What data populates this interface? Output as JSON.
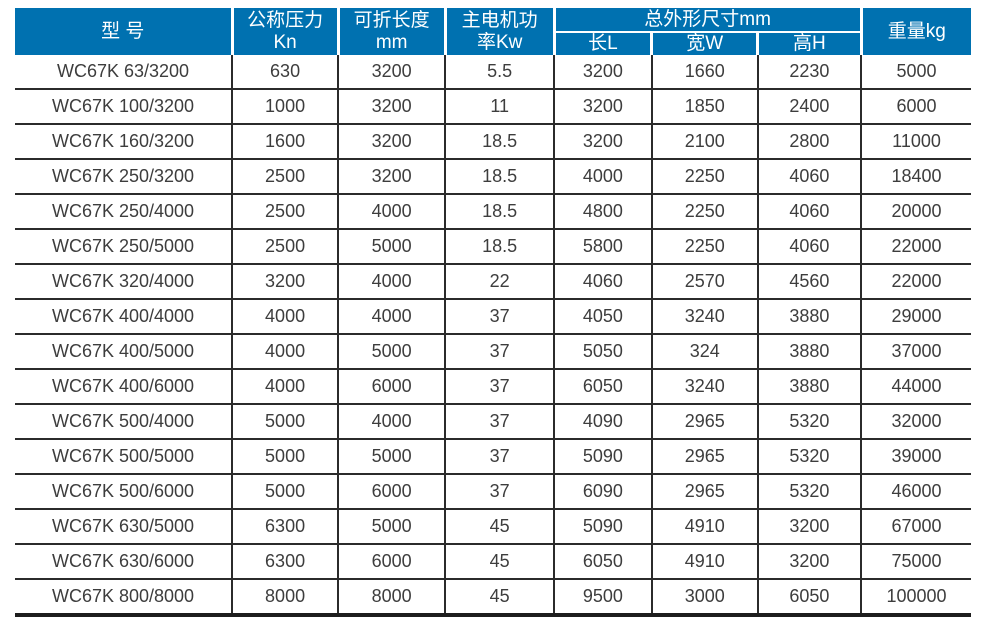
{
  "colors": {
    "header_bg": "#0071b0",
    "header_text": "#ffffff",
    "body_text": "#3d3d3d",
    "grid_line": "#2b2b2b",
    "bottom_line": "#1d1d1d",
    "page_bg": "#ffffff"
  },
  "table": {
    "header": {
      "model": "型 号",
      "pressure": [
        "公称压力",
        "Kn"
      ],
      "length": [
        "可折长度",
        "mm"
      ],
      "motor": [
        "主电机功",
        "率Kw"
      ],
      "dims": "总外形尺寸mm",
      "dims_sub": [
        "长L",
        "宽W",
        "高H"
      ],
      "weight": "重量kg"
    },
    "rows": [
      [
        "WC67K 63/3200",
        "630",
        "3200",
        "5.5",
        "3200",
        "1660",
        "2230",
        "5000"
      ],
      [
        "WC67K 100/3200",
        "1000",
        "3200",
        "11",
        "3200",
        "1850",
        "2400",
        "6000"
      ],
      [
        "WC67K 160/3200",
        "1600",
        "3200",
        "18.5",
        "3200",
        "2100",
        "2800",
        "11000"
      ],
      [
        "WC67K 250/3200",
        "2500",
        "3200",
        "18.5",
        "4000",
        "2250",
        "4060",
        "18400"
      ],
      [
        "WC67K 250/4000",
        "2500",
        "4000",
        "18.5",
        "4800",
        "2250",
        "4060",
        "20000"
      ],
      [
        "WC67K 250/5000",
        "2500",
        "5000",
        "18.5",
        "5800",
        "2250",
        "4060",
        "22000"
      ],
      [
        "WC67K 320/4000",
        "3200",
        "4000",
        "22",
        "4060",
        "2570",
        "4560",
        "22000"
      ],
      [
        "WC67K 400/4000",
        "4000",
        "4000",
        "37",
        "4050",
        "3240",
        "3880",
        "29000"
      ],
      [
        "WC67K 400/5000",
        "4000",
        "5000",
        "37",
        "5050",
        "324",
        "3880",
        "37000"
      ],
      [
        "WC67K 400/6000",
        "4000",
        "6000",
        "37",
        "6050",
        "3240",
        "3880",
        "44000"
      ],
      [
        "WC67K 500/4000",
        "5000",
        "4000",
        "37",
        "4090",
        "2965",
        "5320",
        "32000"
      ],
      [
        "WC67K 500/5000",
        "5000",
        "5000",
        "37",
        "5090",
        "2965",
        "5320",
        "39000"
      ],
      [
        "WC67K 500/6000",
        "5000",
        "6000",
        "37",
        "6090",
        "2965",
        "5320",
        "46000"
      ],
      [
        "WC67K 630/5000",
        "6300",
        "5000",
        "45",
        "5090",
        "4910",
        "3200",
        "67000"
      ],
      [
        "WC67K 630/6000",
        "6300",
        "6000",
        "45",
        "6050",
        "4910",
        "3200",
        "75000"
      ],
      [
        "WC67K 800/8000",
        "8000",
        "8000",
        "45",
        "9500",
        "3000",
        "6050",
        "100000"
      ]
    ]
  }
}
